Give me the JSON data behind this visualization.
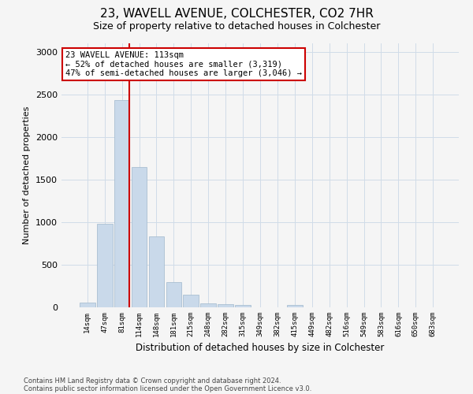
{
  "title1": "23, WAVELL AVENUE, COLCHESTER, CO2 7HR",
  "title2": "Size of property relative to detached houses in Colchester",
  "xlabel": "Distribution of detached houses by size in Colchester",
  "ylabel": "Number of detached properties",
  "bar_labels": [
    "14sqm",
    "47sqm",
    "81sqm",
    "114sqm",
    "148sqm",
    "181sqm",
    "215sqm",
    "248sqm",
    "282sqm",
    "315sqm",
    "349sqm",
    "382sqm",
    "415sqm",
    "449sqm",
    "482sqm",
    "516sqm",
    "549sqm",
    "583sqm",
    "616sqm",
    "650sqm",
    "683sqm"
  ],
  "bar_values": [
    55,
    980,
    2430,
    1650,
    830,
    295,
    150,
    50,
    40,
    25,
    0,
    0,
    25,
    0,
    0,
    0,
    0,
    0,
    0,
    0,
    0
  ],
  "bar_color": "#c9d9ea",
  "bar_edge_color": "#a0b8cc",
  "annotation_text": "23 WAVELL AVENUE: 113sqm\n← 52% of detached houses are smaller (3,319)\n47% of semi-detached houses are larger (3,046) →",
  "annotation_box_color": "#ffffff",
  "annotation_box_edge": "#cc0000",
  "vline_color": "#cc0000",
  "ylim": [
    0,
    3100
  ],
  "yticks": [
    0,
    500,
    1000,
    1500,
    2000,
    2500,
    3000
  ],
  "footer_line1": "Contains HM Land Registry data © Crown copyright and database right 2024.",
  "footer_line2": "Contains public sector information licensed under the Open Government Licence v3.0.",
  "bg_color": "#f5f5f5",
  "grid_color": "#d0dce8",
  "title1_fontsize": 11,
  "title2_fontsize": 9
}
